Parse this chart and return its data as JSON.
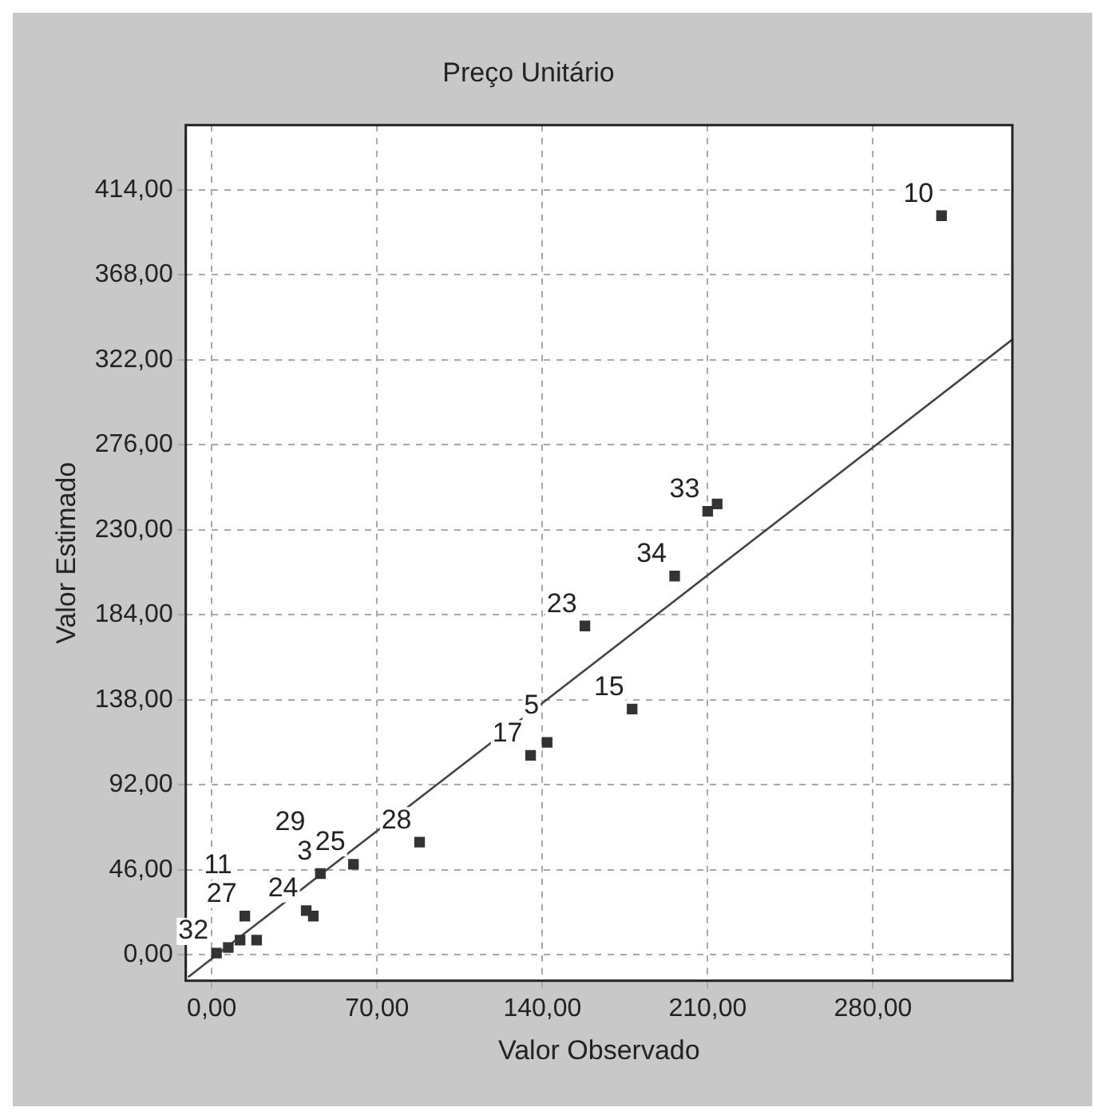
{
  "chart_data": {
    "type": "scatter",
    "title": "Preço Unitário",
    "xlabel": "Valor Observado",
    "ylabel": "Valor Estimado",
    "xlim": [
      -11,
      339
    ],
    "ylim": [
      -14,
      449
    ],
    "xticks": [
      {
        "value": 0,
        "label": "0,00"
      },
      {
        "value": 70,
        "label": "70,00"
      },
      {
        "value": 140,
        "label": "140,00"
      },
      {
        "value": 210,
        "label": "210,00"
      },
      {
        "value": 280,
        "label": "280,00"
      }
    ],
    "yticks": [
      {
        "value": 0,
        "label": "0,00"
      },
      {
        "value": 46,
        "label": "46,00"
      },
      {
        "value": 92,
        "label": "92,00"
      },
      {
        "value": 138,
        "label": "138,00"
      },
      {
        "value": 184,
        "label": "184,00"
      },
      {
        "value": 230,
        "label": "230,00"
      },
      {
        "value": 276,
        "label": "276,00"
      },
      {
        "value": 322,
        "label": "322,00"
      },
      {
        "value": 368,
        "label": "368,00"
      },
      {
        "value": 414,
        "label": "414,00"
      }
    ],
    "grid": true,
    "marker": "square",
    "series": [
      {
        "color": "#333333",
        "x": [
          309,
          210,
          214,
          196,
          158,
          178,
          135,
          142,
          88,
          60,
          46,
          40,
          43,
          14,
          2,
          7,
          12,
          19
        ],
        "values": [
          400,
          240,
          244,
          205,
          178,
          133,
          108,
          115,
          61,
          49,
          44,
          24,
          21,
          21,
          1,
          4,
          8,
          8
        ]
      },
      {
        "type": "line",
        "color": "#444444",
        "marker": "none",
        "x": [
          -10,
          339
        ],
        "values": [
          -12,
          333
        ]
      }
    ],
    "annotations": [
      {
        "text": "10",
        "x": 309,
        "y": 400
      },
      {
        "text": "33",
        "x": 210,
        "y": 240
      },
      {
        "text": "34",
        "x": 196,
        "y": 205
      },
      {
        "text": "23",
        "x": 158,
        "y": 178
      },
      {
        "text": "15",
        "x": 178,
        "y": 133
      },
      {
        "text": "17",
        "x": 135,
        "y": 108
      },
      {
        "text": "5",
        "x": 142,
        "y": 115
      },
      {
        "text": "28",
        "x": 88,
        "y": 61
      },
      {
        "text": "25",
        "x": 60,
        "y": 49
      },
      {
        "text": "3",
        "x": 46,
        "y": 44
      },
      {
        "text": "24",
        "x": 40,
        "y": 24
      },
      {
        "text": "29",
        "x": 43,
        "y": 21
      },
      {
        "text": "27",
        "x": 14,
        "y": 21
      },
      {
        "text": "11",
        "x": 12,
        "y": 8
      },
      {
        "text": "32",
        "x": 2,
        "y": 1
      }
    ]
  }
}
